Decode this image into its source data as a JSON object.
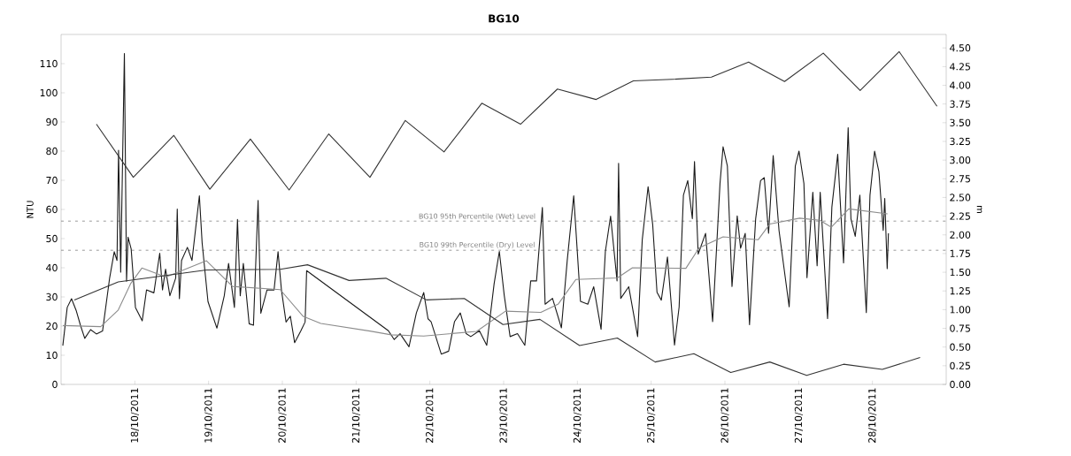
{
  "chart_data": {
    "type": "line",
    "title": "BG10",
    "ylabel": "NTU",
    "y2label": "m",
    "xlim": [
      "2011-10-17",
      "2011-10-29"
    ],
    "xticks": [
      {
        "value": "2011-10-18",
        "label": "18/10/2011"
      },
      {
        "value": "2011-10-19",
        "label": "19/10/2011"
      },
      {
        "value": "2011-10-20",
        "label": "20/10/2011"
      },
      {
        "value": "2011-10-21",
        "label": "21/10/2011"
      },
      {
        "value": "2011-10-22",
        "label": "22/10/2011"
      },
      {
        "value": "2011-10-23",
        "label": "23/10/2011"
      },
      {
        "value": "2011-10-24",
        "label": "24/10/2011"
      },
      {
        "value": "2011-10-25",
        "label": "25/10/2011"
      },
      {
        "value": "2011-10-26",
        "label": "26/10/2011"
      },
      {
        "value": "2011-10-27",
        "label": "27/10/2011"
      },
      {
        "value": "2011-10-28",
        "label": "28/10/2011"
      }
    ],
    "ylim": [
      0,
      120
    ],
    "yticks": [
      0,
      10,
      20,
      30,
      40,
      50,
      60,
      70,
      80,
      90,
      100,
      110
    ],
    "y2lim": [
      0,
      4.68
    ],
    "y2ticks": [
      {
        "value": 0,
        "label": "0.00"
      },
      {
        "value": 0.25,
        "label": "0.25"
      },
      {
        "value": 0.5,
        "label": "0.50"
      },
      {
        "value": 0.75,
        "label": "0.75"
      },
      {
        "value": 1,
        "label": "1.00"
      },
      {
        "value": 1.25,
        "label": "1.25"
      },
      {
        "value": 1.5,
        "label": "1.50"
      },
      {
        "value": 1.75,
        "label": "1.75"
      },
      {
        "value": 2,
        "label": "2.00"
      },
      {
        "value": 2.25,
        "label": "2.25"
      },
      {
        "value": 2.5,
        "label": "2.50"
      },
      {
        "value": 2.75,
        "label": "2.75"
      },
      {
        "value": 3,
        "label": "3.00"
      },
      {
        "value": 3.25,
        "label": "3.25"
      },
      {
        "value": 3.5,
        "label": "3.50"
      },
      {
        "value": 3.75,
        "label": "3.75"
      },
      {
        "value": 4,
        "label": "4.00"
      },
      {
        "value": 4.25,
        "label": "4.25"
      },
      {
        "value": 4.5,
        "label": "4.50"
      }
    ],
    "ref_lines": [
      {
        "axis": "y",
        "value": 56,
        "label": "BG10 95th Percentile (Wet) Level",
        "color": "#808080",
        "line_style": "dashed"
      },
      {
        "axis": "y",
        "value": 46,
        "label": "BG10 99th Percentile (Dry) Level",
        "color": "#808080",
        "line_style": "dashed"
      }
    ],
    "series": [
      {
        "color": "#1a1a1a",
        "line_style": "solid",
        "x": [
          "2011-10-17T00:34",
          "2011-10-17T02:00",
          "2011-10-17T03:24",
          "2011-10-17T04:54",
          "2011-10-17T06:18",
          "2011-10-17T07:42",
          "2011-10-17T09:36",
          "2011-10-17T11:30",
          "2011-10-17T13:30",
          "2011-10-17T15:48",
          "2011-10-17T17:18",
          "2011-10-17T18:12",
          "2011-10-17T18:42",
          "2011-10-17T19:24",
          "2011-10-17T20:36",
          "2011-10-17T21:18",
          "2011-10-17T21:48",
          "2011-10-17T22:48",
          "2011-10-18T00:12",
          "2011-10-18T02:24",
          "2011-10-18T03:48",
          "2011-10-18T06:12",
          "2011-10-18T08:06",
          "2011-10-18T09:00",
          "2011-10-18T10:00",
          "2011-10-18T11:24",
          "2011-10-18T13:18",
          "2011-10-18T13:48",
          "2011-10-18T14:30",
          "2011-10-18T15:12",
          "2011-10-18T17:06",
          "2011-10-18T18:36",
          "2011-10-18T19:48",
          "2011-10-18T21:00",
          "2011-10-18T21:54",
          "2011-10-18T23:48",
          "2011-10-19T02:42",
          "2011-10-19T05:06",
          "2011-10-19T06:30",
          "2011-10-19T08:24",
          "2011-10-19T09:24",
          "2011-10-19T10:18",
          "2011-10-19T11:18",
          "2011-10-19T13:12",
          "2011-10-19T14:36",
          "2011-10-19T16:06",
          "2011-10-19T17:00",
          "2011-10-19T19:00",
          "2011-10-19T21:18",
          "2011-10-19T22:36",
          "2011-10-19T23:42",
          "2011-10-20T01:12",
          "2011-10-20T02:36",
          "2011-10-20T04:00",
          "2011-10-20T06:00",
          "2011-10-20T07:24",
          "2011-10-20T07:54",
          "2011-10-21T10:30",
          "2011-10-21T12:24",
          "2011-10-21T14:18",
          "2011-10-21T17:12",
          "2011-10-21T19:36",
          "2011-10-21T22:00",
          "2011-10-21T23:24",
          "2011-10-22T00:24",
          "2011-10-22T03:42",
          "2011-10-22T06:06",
          "2011-10-22T08:00",
          "2011-10-22T09:54",
          "2011-10-22T11:48",
          "2011-10-22T13:18",
          "2011-10-22T16:06",
          "2011-10-22T18:30",
          "2011-10-22T20:54",
          "2011-10-22T22:36",
          "2011-10-23T00:12",
          "2011-10-23T02:06",
          "2011-10-23T04:30",
          "2011-10-23T06:54",
          "2011-10-23T08:48",
          "2011-10-23T10:42",
          "2011-10-23T12:36",
          "2011-10-23T13:30",
          "2011-10-23T15:54",
          "2011-10-23T18:48",
          "2011-10-23T20:42",
          "2011-10-23T22:48",
          "2011-10-24T01:00",
          "2011-10-24T03:24",
          "2011-10-24T05:18",
          "2011-10-24T07:42",
          "2011-10-24T09:06",
          "2011-10-24T10:48",
          "2011-10-24T12:54",
          "2011-10-24T13:24",
          "2011-10-24T14:06",
          "2011-10-24T16:42",
          "2011-10-24T19:36",
          "2011-10-24T21:06",
          "2011-10-24T23:00",
          "2011-10-25T00:30",
          "2011-10-25T01:54",
          "2011-10-25T03:18",
          "2011-10-25T05:18",
          "2011-10-25T07:36",
          "2011-10-25T09:06",
          "2011-10-25T10:30",
          "2011-10-25T11:54",
          "2011-10-25T13:24",
          "2011-10-25T14:06",
          "2011-10-25T15:18",
          "2011-10-25T17:42",
          "2011-10-25T20:00",
          "2011-10-25T22:24",
          "2011-10-25T23:24",
          "2011-10-26T00:48",
          "2011-10-26T02:18",
          "2011-10-26T04:00",
          "2011-10-26T05:06",
          "2011-10-26T06:36",
          "2011-10-26T08:00",
          "2011-10-26T10:00",
          "2011-10-26T11:36",
          "2011-10-26T12:48",
          "2011-10-26T14:12",
          "2011-10-26T15:42",
          "2011-10-26T17:36",
          "2011-10-26T20:54",
          "2011-10-26T22:54",
          "2011-10-27T00:06",
          "2011-10-27T01:42",
          "2011-10-27T02:42",
          "2011-10-27T04:36",
          "2011-10-27T06:00",
          "2011-10-27T07:00",
          "2011-10-27T09:24",
          "2011-10-27T10:48",
          "2011-10-27T12:42",
          "2011-10-27T14:36",
          "2011-10-27T16:06",
          "2011-10-27T17:00",
          "2011-10-27T18:24",
          "2011-10-27T19:54",
          "2011-10-27T22:00",
          "2011-10-27T23:12",
          "2011-10-28T00:42",
          "2011-10-28T02:06",
          "2011-10-28T03:30",
          "2011-10-28T04:00",
          "2011-10-28T04:48",
          "2011-10-28T05:12"
        ],
        "values": [
          13.3,
          26.4,
          29.4,
          25.4,
          20.3,
          15.8,
          18.8,
          17.3,
          18.3,
          36.5,
          45.5,
          42.5,
          80.3,
          38.5,
          113.5,
          35.4,
          50.5,
          46.5,
          26.4,
          21.8,
          32.4,
          31.4,
          45.0,
          32.4,
          39.5,
          30.4,
          36.5,
          60.1,
          29.4,
          42.5,
          47.0,
          42.5,
          53.6,
          64.7,
          48.5,
          28.4,
          19.3,
          30.4,
          41.5,
          26.4,
          56.6,
          30.4,
          41.5,
          20.8,
          20.3,
          63.1,
          24.4,
          32.4,
          32.4,
          45.5,
          32.4,
          21.4,
          23.4,
          14.3,
          18.3,
          21.4,
          39.0,
          18.4,
          15.4,
          17.4,
          12.9,
          24.5,
          31.5,
          22.5,
          21.5,
          10.4,
          11.4,
          21.5,
          24.5,
          17.4,
          16.4,
          18.4,
          13.4,
          34.5,
          45.6,
          30.5,
          16.4,
          17.4,
          13.4,
          35.5,
          35.5,
          60.7,
          27.5,
          29.5,
          19.4,
          42.6,
          64.7,
          28.5,
          27.5,
          33.5,
          18.9,
          45.6,
          57.7,
          35.5,
          75.8,
          29.5,
          33.5,
          16.4,
          49.6,
          67.8,
          54.8,
          31.6,
          28.9,
          43.7,
          13.5,
          26.6,
          64.9,
          69.9,
          56.8,
          76.4,
          44.7,
          51.8,
          21.5,
          68.9,
          81.5,
          74.9,
          33.6,
          57.8,
          46.7,
          51.8,
          20.5,
          56.8,
          69.9,
          70.9,
          51.8,
          78.5,
          52.8,
          26.6,
          74.9,
          80.0,
          68.9,
          36.6,
          65.9,
          40.7,
          65.9,
          22.6,
          60.8,
          78.9,
          41.7,
          88.0,
          56.8,
          50.8,
          64.9,
          24.6,
          64.9,
          80.0,
          72.9,
          52.8,
          63.8,
          39.7,
          51.8
        ]
      },
      {
        "color": "#8c8c8c",
        "line_style": "solid",
        "x": [
          "2011-10-17T00:36",
          "2011-10-17T12:54",
          "2011-10-17T18:36",
          "2011-10-17T22:36",
          "2011-10-18T02:18",
          "2011-10-18T10:06",
          "2011-10-18T23:18",
          "2011-10-19T07:48",
          "2011-10-19T23:18",
          "2011-10-20T06:48",
          "2011-10-20T12:30",
          "2011-10-21T04:30",
          "2011-10-21T11:24",
          "2011-10-21T22:00",
          "2011-10-22T15:12",
          "2011-10-23T00:36",
          "2011-10-23T12:06",
          "2011-10-23T17:48",
          "2011-10-23T23:30",
          "2011-10-24T13:00",
          "2011-10-24T17:54",
          "2011-10-25T11:18",
          "2011-10-25T15:36",
          "2011-10-25T23:24",
          "2011-10-26T10:48",
          "2011-10-26T14:36",
          "2011-10-27T00:18",
          "2011-10-27T06:54",
          "2011-10-27T10:36",
          "2011-10-27T16:18",
          "2011-10-28T04:54"
        ],
        "values": [
          20.2,
          19.8,
          25.5,
          34.5,
          39.9,
          36.8,
          42.4,
          33.6,
          32.5,
          23.3,
          20.9,
          18.3,
          17.0,
          16.6,
          18.2,
          25.1,
          24.7,
          27.6,
          36.0,
          36.5,
          40.0,
          39.8,
          46.8,
          50.6,
          49.6,
          55.0,
          57.0,
          56.3,
          53.9,
          60.2,
          58.5
        ]
      },
      {
        "axis": "y2",
        "color": "#333333",
        "line_style": "solid",
        "x": [
          "2011-10-17T11:30",
          "2011-10-17T23:30",
          "2011-10-18T12:42",
          "2011-10-19T00:24",
          "2011-10-19T13:36",
          "2011-10-20T02:12",
          "2011-10-20T15:06",
          "2011-10-21T04:30",
          "2011-10-21T16:00",
          "2011-10-22T04:36",
          "2011-10-22T16:54",
          "2011-10-23T05:30",
          "2011-10-23T17:30",
          "2011-10-24T06:06",
          "2011-10-24T18:12",
          "2011-10-25T06:48",
          "2011-10-25T19:36",
          "2011-10-26T07:42",
          "2011-10-26T19:24",
          "2011-10-27T08:00",
          "2011-10-27T20:00",
          "2011-10-28T08:42",
          "2011-10-28T21:00"
        ],
        "values": [
          3.48,
          2.77,
          3.33,
          2.61,
          3.28,
          2.6,
          3.35,
          2.77,
          3.53,
          3.11,
          3.76,
          3.48,
          3.95,
          3.81,
          4.06,
          4.08,
          4.11,
          4.31,
          4.05,
          4.43,
          3.93,
          4.45,
          3.72
        ]
      },
      {
        "axis": "y2",
        "color": "#333333",
        "line_style": "solid",
        "x": [
          "2011-10-17T04:18",
          "2011-10-17T18:36",
          "2011-10-18T23:18",
          "2011-10-19T23:18",
          "2011-10-20T08:12",
          "2011-10-20T21:42",
          "2011-10-21T09:42",
          "2011-10-21T22:54",
          "2011-10-22T11:12",
          "2011-10-22T23:48",
          "2011-10-23T11:48",
          "2011-10-24T00:42",
          "2011-10-24T13:00",
          "2011-10-25T01:18",
          "2011-10-25T13:54",
          "2011-10-26T01:54",
          "2011-10-26T14:36",
          "2011-10-27T02:36",
          "2011-10-27T14:36",
          "2011-10-28T03:12",
          "2011-10-28T15:30"
        ],
        "values": [
          1.13,
          1.37,
          1.53,
          1.54,
          1.6,
          1.39,
          1.42,
          1.13,
          1.15,
          0.8,
          0.87,
          0.52,
          0.62,
          0.3,
          0.41,
          0.16,
          0.3,
          0.12,
          0.27,
          0.2,
          0.36
        ]
      }
    ]
  }
}
